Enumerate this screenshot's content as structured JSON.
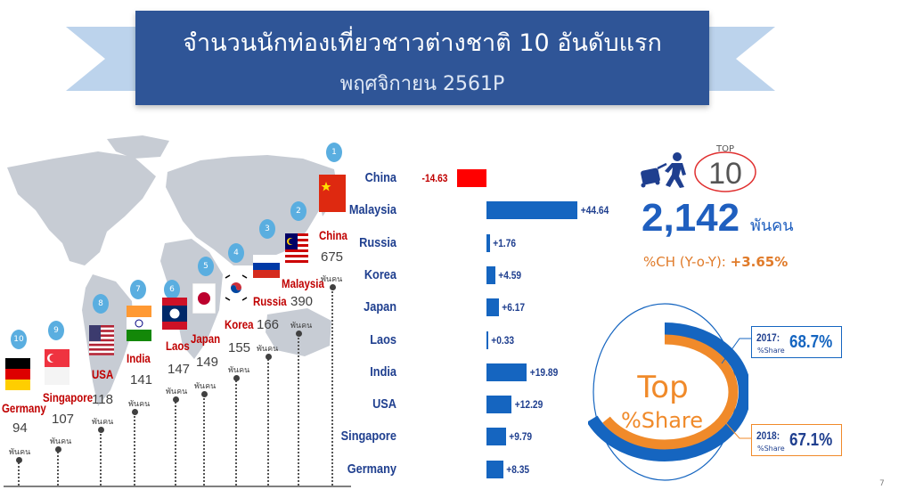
{
  "header": {
    "title": "จำนวนนักท่องเที่ยวชาวต่างชาติ 10  อันดับแรก",
    "subtitle": "พฤศจิกายน 2561P"
  },
  "chart_data": [
    {
      "type": "bar",
      "title": "",
      "unit": "พันคน",
      "categories": [
        "Germany",
        "Singapore",
        "USA",
        "India",
        "Laos",
        "Japan",
        "Korea",
        "Russia",
        "Malaysia",
        "China"
      ],
      "ranks": [
        "10",
        "9",
        "8",
        "7",
        "6",
        "5",
        "4",
        "3",
        "2",
        "1"
      ],
      "values": [
        94,
        107,
        118,
        141,
        147,
        149,
        155,
        166,
        390,
        675
      ],
      "value_labels": [
        "94",
        "107",
        "118",
        "141",
        "147",
        "149",
        "155",
        "166",
        "390",
        "675"
      ]
    },
    {
      "type": "bar",
      "orientation": "horizontal",
      "title": "",
      "categories": [
        "China",
        "Malaysia",
        "Russia",
        "Korea",
        "Japan",
        "Laos",
        "India",
        "USA",
        "Singapore",
        "Germany"
      ],
      "values": [
        -14.63,
        44.64,
        1.76,
        4.59,
        6.17,
        0.33,
        19.89,
        12.29,
        9.79,
        8.35
      ],
      "labels": [
        "-14.63",
        "+44.64",
        "+1.76",
        "+4.59",
        "+6.17",
        "+0.33",
        "+19.89",
        "+12.29",
        "+9.79",
        "+8.35"
      ],
      "colors": {
        "positive": "#1565c0",
        "negative": "#ff0000"
      }
    },
    {
      "type": "pie",
      "title": "Top %Share",
      "title_line1": "Top",
      "title_line2": "%Share",
      "series": [
        {
          "name": "2017:",
          "sub": "%Share",
          "value": 68.7,
          "label": "68.7%",
          "color": "#1565c0"
        },
        {
          "name": "2018:",
          "sub": "%Share",
          "value": 67.1,
          "label": "67.1%",
          "color": "#f08a2a"
        }
      ]
    }
  ],
  "summary": {
    "top_label": "TOP",
    "top_number": "10",
    "total": "2,142",
    "total_unit": "พันคน",
    "ch_label": "%CH (Y-o-Y): ",
    "ch_value": "+3.65%"
  },
  "page_number": "7",
  "icons": [
    "traveler-luggage-icon",
    "world-map-icon"
  ]
}
